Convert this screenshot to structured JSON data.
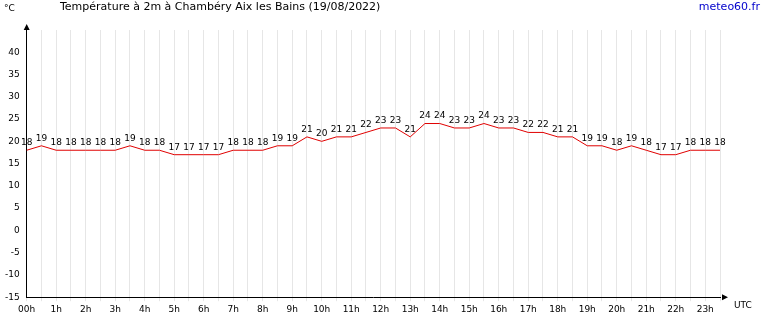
{
  "chart_data": {
    "type": "line",
    "title": "Température à 2m à Chambéry Aix les Bains (19/08/2022)",
    "source": "meteo60.fr",
    "x_label": "UTC",
    "y_label": "°C",
    "categories": [
      "00h",
      null,
      "1h",
      null,
      "2h",
      null,
      "3h",
      null,
      "4h",
      null,
      "5h",
      null,
      "6h",
      null,
      "7h",
      null,
      "8h",
      null,
      "9h",
      null,
      "10h",
      null,
      "11h",
      null,
      "12h",
      null,
      "13h",
      null,
      "14h",
      null,
      "15h",
      null,
      "16h",
      null,
      "17h",
      null,
      "18h",
      null,
      "19h",
      null,
      "20h",
      null,
      "21h",
      null,
      "22h",
      null,
      "23h",
      null
    ],
    "values": [
      18,
      19,
      18,
      18,
      18,
      18,
      18,
      19,
      18,
      18,
      17,
      17,
      17,
      17,
      18,
      18,
      18,
      19,
      19,
      21,
      20,
      21,
      21,
      22,
      23,
      23,
      21,
      24,
      24,
      23,
      23,
      24,
      23,
      23,
      22,
      22,
      21,
      21,
      19,
      19,
      18,
      19,
      18,
      17,
      17,
      18,
      18,
      18
    ],
    "color": "#e00000",
    "ylim": [
      -15,
      45
    ],
    "yticks": [
      -15,
      -10,
      -5,
      0,
      5,
      10,
      15,
      20,
      25,
      30,
      35,
      40
    ],
    "grid": true,
    "data_labels": true
  }
}
